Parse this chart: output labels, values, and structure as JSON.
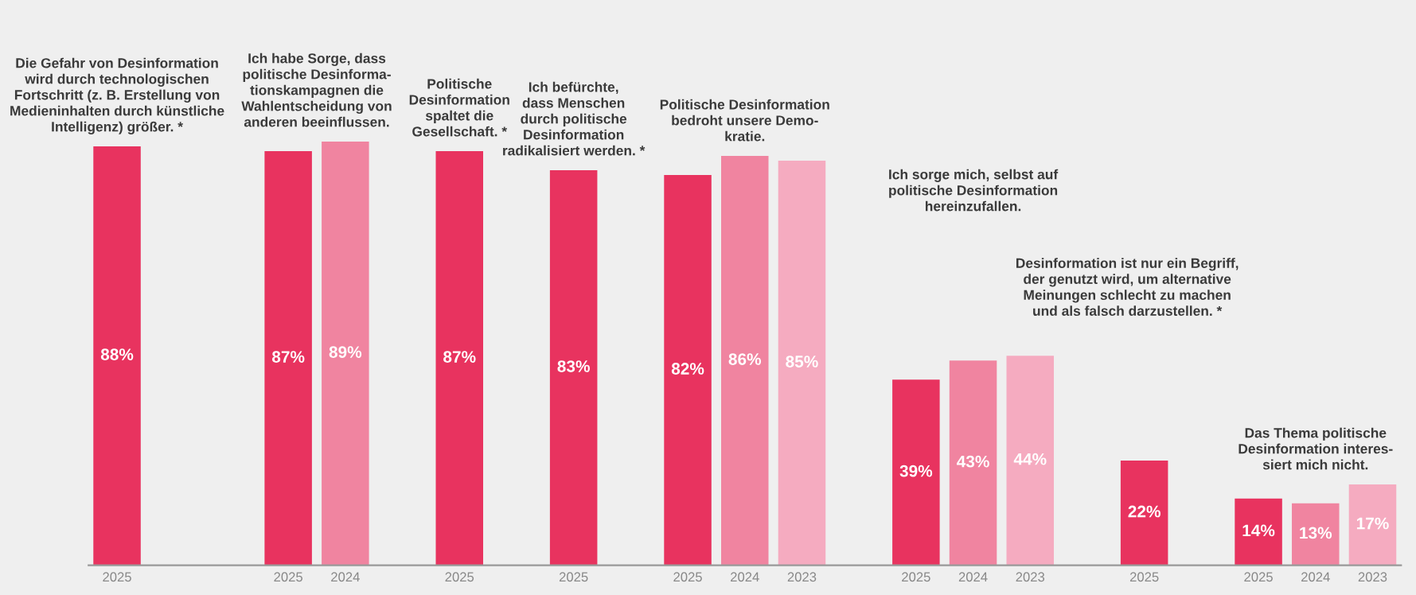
{
  "chart_data": {
    "type": "bar",
    "categories": [
      "2025",
      null,
      null,
      "2025",
      "2024",
      null,
      "2025",
      null,
      "2025",
      null,
      "2025",
      "2024",
      "2023",
      null,
      "2025",
      "2024",
      "2023",
      null,
      "2025",
      null,
      "2025",
      "2024",
      "2023"
    ],
    "values": [
      88,
      null,
      null,
      87,
      89,
      null,
      87,
      null,
      83,
      null,
      82,
      86,
      85,
      null,
      39,
      43,
      44,
      null,
      22,
      null,
      14,
      13,
      17
    ],
    "colors": [
      "#e8335f",
      null,
      null,
      "#e8335f",
      "#f084a0",
      null,
      "#e8335f",
      null,
      "#e8335f",
      null,
      "#e8335f",
      "#f084a0",
      "#f5abc0",
      null,
      "#e8335f",
      "#f084a0",
      "#f5abc0",
      null,
      "#e8335f",
      null,
      "#e8335f",
      "#f084a0",
      "#f5abc0"
    ],
    "value_labels": [
      "88%",
      null,
      null,
      "87%",
      "89%",
      null,
      "87%",
      null,
      "83%",
      null,
      "82%",
      "86%",
      "85%",
      null,
      "39%",
      "43%",
      "44%",
      null,
      "22%",
      null,
      "14%",
      "13%",
      "17%"
    ],
    "annotations": [
      "Die Gefahr von Desinformation\nwird durch technologischen\nFortschritt (z. B. Erstellung von\nMedieninhalten durch künstliche\nIntelligenz) größer. *",
      "Ich habe Sorge, dass\npolitische Desinforma-\ntionskampagnen die\nWahlentscheidung von\nanderen beeinflussen.",
      "Politische\nDesinformation\nspaltet die\nGesellschaft. *",
      "Ich befürchte,\ndass Menschen\ndurch politische\nDesinformation\nradikalisiert werden. *",
      "Politische Desinformation\nbedroht unsere Demo-\nkratie.",
      "Ich sorge mich, selbst auf\npolitische Desinformation\nhereinzufallen.",
      "Desinformation ist nur ein Begriff,\nder genutzt wird, um alternative\nMeinungen schlecht zu machen\nund als falsch darzustellen. *",
      "Das Thema politische\nDesinformation interes-\nsiert mich nicht."
    ]
  }
}
